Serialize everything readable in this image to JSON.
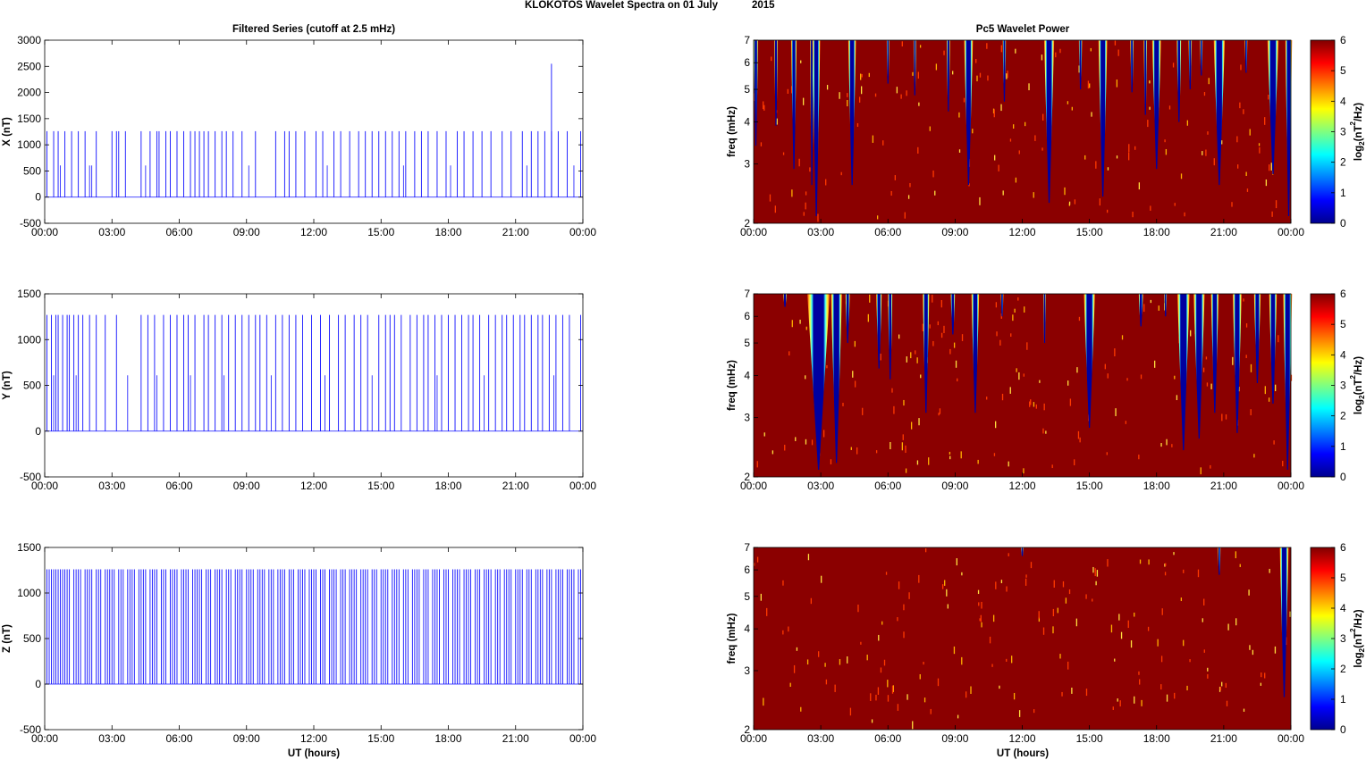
{
  "figure": {
    "title": "KLOKOTOS Wavelet Spectra on 01 July",
    "year": "2015"
  },
  "left_title": "Filtered Series (cutoff at 2.5 mHz)",
  "right_title": "Pc5 Wavelet Power",
  "x_label": "UT (hours)",
  "time_ticks": [
    "00:00",
    "03:00",
    "06:00",
    "09:00",
    "12:00",
    "15:00",
    "18:00",
    "21:00",
    "00:00"
  ],
  "freq_ticks": [
    "2",
    "3",
    "4",
    "5",
    "6",
    "7"
  ],
  "freq_label": "freq (mHz)",
  "colorbar_ticks": [
    "0",
    "1",
    "2",
    "3",
    "4",
    "5",
    "6"
  ],
  "colorbar_label_main": "log",
  "colorbar_label_sub": "2",
  "colorbar_label_rest": "(nT",
  "colorbar_label_sup": "2",
  "colorbar_label_end": "/Hz)",
  "colors": {
    "series_line": "#1010ff",
    "bg_power": "#8b0000",
    "low_power": "#000090"
  },
  "chart_data": [
    {
      "type": "line",
      "title": "Filtered Series (cutoff at 2.5 mHz)",
      "ylabel": "X (nT)",
      "xlabel": "",
      "x_ticks": [
        "00:00",
        "03:00",
        "06:00",
        "09:00",
        "12:00",
        "15:00",
        "18:00",
        "21:00",
        "00:00"
      ],
      "ylim": [
        -500,
        3000
      ],
      "y_ticks": [
        -500,
        0,
        500,
        1000,
        1500,
        2000,
        2500,
        3000
      ],
      "baseline": 0,
      "spike_level": 1260,
      "max_spike": {
        "hour": 22.6,
        "value": 2550
      },
      "spike_hours": [
        0.1,
        0.4,
        0.6,
        0.9,
        1.2,
        1.5,
        1.8,
        2.3,
        3.0,
        3.2,
        3.3,
        3.6,
        4.3,
        4.7,
        5.0,
        5.1,
        5.4,
        5.6,
        5.9,
        6.2,
        6.5,
        6.7,
        6.9,
        7.1,
        7.3,
        7.6,
        7.9,
        8.1,
        8.4,
        8.8,
        9.4,
        10.3,
        10.7,
        10.9,
        11.2,
        11.6,
        12.1,
        12.4,
        12.9,
        13.2,
        13.6,
        14.0,
        14.3,
        14.6,
        14.9,
        15.2,
        15.5,
        15.8,
        16.1,
        16.5,
        16.8,
        17.1,
        17.5,
        17.9,
        18.4,
        18.7,
        19.1,
        19.5,
        19.9,
        20.4,
        20.8,
        21.3,
        21.7,
        22.0,
        22.3,
        22.6,
        22.9,
        23.3,
        23.9
      ],
      "small_hours": [
        0.7,
        2.0,
        2.1,
        4.5,
        9.1,
        12.6,
        16.0,
        18.1,
        21.5,
        23.6
      ]
    },
    {
      "type": "line",
      "ylabel": "Y (nT)",
      "xlabel": "",
      "x_ticks": [
        "00:00",
        "03:00",
        "06:00",
        "09:00",
        "12:00",
        "15:00",
        "18:00",
        "21:00",
        "00:00"
      ],
      "ylim": [
        -500,
        1500
      ],
      "y_ticks": [
        -500,
        0,
        500,
        1000,
        1500
      ],
      "baseline": 0,
      "spike_level": 1270,
      "spike_hours": [
        0.1,
        0.3,
        0.5,
        0.6,
        0.8,
        1.0,
        1.1,
        1.3,
        1.5,
        1.7,
        2.0,
        2.3,
        2.7,
        3.2,
        4.3,
        4.6,
        4.9,
        5.3,
        5.6,
        5.9,
        6.2,
        6.4,
        6.7,
        7.1,
        7.3,
        7.6,
        7.9,
        8.2,
        8.5,
        8.8,
        9.1,
        9.4,
        9.6,
        9.9,
        10.3,
        10.6,
        10.9,
        11.2,
        11.5,
        11.9,
        12.3,
        12.7,
        13.1,
        13.4,
        13.8,
        14.1,
        14.4,
        14.9,
        15.2,
        15.4,
        15.6,
        15.9,
        16.3,
        16.6,
        16.9,
        17.1,
        17.4,
        17.7,
        18.0,
        18.3,
        18.6,
        18.9,
        19.1,
        19.4,
        19.8,
        20.1,
        20.4,
        20.6,
        20.9,
        21.2,
        21.4,
        21.7,
        22.0,
        22.2,
        22.5,
        22.8,
        23.1,
        23.4,
        23.9
      ],
      "small_hours": [
        0.4,
        1.4,
        3.7,
        5.0,
        6.5,
        8.0,
        10.1,
        12.5,
        14.6,
        17.5,
        19.6,
        22.7
      ]
    },
    {
      "type": "line",
      "ylabel": "Z (nT)",
      "xlabel": "UT (hours)",
      "x_ticks": [
        "00:00",
        "03:00",
        "06:00",
        "09:00",
        "12:00",
        "15:00",
        "18:00",
        "21:00",
        "00:00"
      ],
      "ylim": [
        -500,
        1500
      ],
      "y_ticks": [
        -500,
        0,
        500,
        1000,
        1500
      ],
      "baseline": 0,
      "spike_level": 1260,
      "spike_density": "continuous dense spikes from 00:00 to 23:59 at roughly every 0.12 h",
      "spike_hours": [
        0.1,
        0.2,
        0.3,
        0.4,
        0.5,
        0.6,
        0.7,
        0.8,
        0.9,
        1.0,
        1.1,
        1.3,
        1.4,
        1.5,
        1.6,
        1.8,
        1.9,
        2.0,
        2.1,
        2.3,
        2.4,
        2.5,
        2.7,
        2.8,
        2.9,
        3.0,
        3.1,
        3.3,
        3.4,
        3.5,
        3.7,
        3.8,
        3.9,
        4.0,
        4.2,
        4.3,
        4.4,
        4.5,
        4.7,
        4.8,
        4.9,
        5.0,
        5.2,
        5.3,
        5.4,
        5.6,
        5.7,
        5.8,
        5.9,
        6.1,
        6.2,
        6.3,
        6.4,
        6.6,
        6.7,
        6.8,
        6.9,
        7.0,
        7.2,
        7.3,
        7.4,
        7.6,
        7.7,
        7.8,
        7.9,
        8.1,
        8.2,
        8.3,
        8.5,
        8.6,
        8.7,
        8.8,
        9.0,
        9.1,
        9.2,
        9.3,
        9.5,
        9.6,
        9.7,
        9.8,
        10.0,
        10.1,
        10.2,
        10.4,
        10.5,
        10.6,
        10.7,
        10.9,
        11.0,
        11.1,
        11.3,
        11.4,
        11.5,
        11.6,
        11.8,
        11.9,
        12.0,
        12.1,
        12.3,
        12.4,
        12.5,
        12.7,
        12.8,
        12.9,
        13.0,
        13.2,
        13.3,
        13.4,
        13.6,
        13.7,
        13.8,
        13.9,
        14.1,
        14.2,
        14.3,
        14.4,
        14.6,
        14.7,
        14.8,
        15.0,
        15.1,
        15.2,
        15.3,
        15.5,
        15.6,
        15.7,
        15.8,
        16.0,
        16.1,
        16.2,
        16.4,
        16.5,
        16.6,
        16.7,
        16.9,
        17.0,
        17.1,
        17.3,
        17.4,
        17.5,
        17.6,
        17.8,
        17.9,
        18.0,
        18.2,
        18.3,
        18.4,
        18.5,
        18.7,
        18.8,
        18.9,
        19.0,
        19.2,
        19.3,
        19.4,
        19.6,
        19.7,
        19.8,
        19.9,
        20.1,
        20.2,
        20.3,
        20.5,
        20.6,
        20.7,
        20.8,
        21.0,
        21.1,
        21.2,
        21.3,
        21.5,
        21.6,
        21.7,
        21.9,
        22.0,
        22.1,
        22.2,
        22.4,
        22.5,
        22.6,
        22.8,
        22.9,
        23.0,
        23.1,
        23.3,
        23.4,
        23.5,
        23.6,
        23.8,
        23.9
      ]
    },
    {
      "type": "heatmap",
      "title": "Pc5 Wavelet Power",
      "ylabel": "freq (mHz)",
      "xlabel": "",
      "scale_y": "log",
      "ylim": [
        2,
        7
      ],
      "zlim": [
        0,
        6
      ],
      "colorbar": "log2(nT^2/Hz)",
      "background_value": 6,
      "low_power_plumes": [
        {
          "hour": 0.1,
          "depth_mhz": 3.4,
          "width_h": 0.2
        },
        {
          "hour": 1.0,
          "depth_mhz": 3.9,
          "width_h": 0.15
        },
        {
          "hour": 1.8,
          "depth_mhz": 2.9,
          "width_h": 0.25
        },
        {
          "hour": 2.6,
          "depth_mhz": 2.6,
          "width_h": 0.15
        },
        {
          "hour": 2.8,
          "depth_mhz": 2.1,
          "width_h": 0.35
        },
        {
          "hour": 4.4,
          "depth_mhz": 2.6,
          "width_h": 0.35
        },
        {
          "hour": 6.0,
          "depth_mhz": 5.2,
          "width_h": 0.12
        },
        {
          "hour": 7.2,
          "depth_mhz": 4.8,
          "width_h": 0.12
        },
        {
          "hour": 8.7,
          "depth_mhz": 4.3,
          "width_h": 0.15
        },
        {
          "hour": 9.6,
          "depth_mhz": 2.6,
          "width_h": 0.4
        },
        {
          "hour": 11.2,
          "depth_mhz": 4.6,
          "width_h": 0.15
        },
        {
          "hour": 13.2,
          "depth_mhz": 2.3,
          "width_h": 0.45
        },
        {
          "hour": 14.6,
          "depth_mhz": 5.0,
          "width_h": 0.15
        },
        {
          "hour": 15.6,
          "depth_mhz": 2.4,
          "width_h": 0.4
        },
        {
          "hour": 16.9,
          "depth_mhz": 4.9,
          "width_h": 0.15
        },
        {
          "hour": 17.5,
          "depth_mhz": 4.2,
          "width_h": 0.15
        },
        {
          "hour": 18.0,
          "depth_mhz": 2.9,
          "width_h": 0.4
        },
        {
          "hour": 19.0,
          "depth_mhz": 4.0,
          "width_h": 0.2
        },
        {
          "hour": 19.5,
          "depth_mhz": 5.0,
          "width_h": 0.15
        },
        {
          "hour": 20.0,
          "depth_mhz": 5.5,
          "width_h": 0.12
        },
        {
          "hour": 20.8,
          "depth_mhz": 2.6,
          "width_h": 0.5
        },
        {
          "hour": 22.0,
          "depth_mhz": 5.6,
          "width_h": 0.12
        },
        {
          "hour": 23.2,
          "depth_mhz": 2.8,
          "width_h": 0.5
        },
        {
          "hour": 23.9,
          "depth_mhz": 2.1,
          "width_h": 0.3
        }
      ]
    },
    {
      "type": "heatmap",
      "ylabel": "freq (mHz)",
      "xlabel": "",
      "scale_y": "log",
      "ylim": [
        2,
        7
      ],
      "zlim": [
        0,
        6
      ],
      "colorbar": "log2(nT^2/Hz)",
      "background_value": 6,
      "low_power_plumes": [
        {
          "hour": 1.4,
          "depth_mhz": 6.4,
          "width_h": 0.15
        },
        {
          "hour": 2.9,
          "depth_mhz": 2.1,
          "width_h": 1.0
        },
        {
          "hour": 3.7,
          "depth_mhz": 2.2,
          "width_h": 0.5
        },
        {
          "hour": 4.2,
          "depth_mhz": 5.0,
          "width_h": 0.2
        },
        {
          "hour": 5.6,
          "depth_mhz": 4.2,
          "width_h": 0.25
        },
        {
          "hour": 6.1,
          "depth_mhz": 3.9,
          "width_h": 0.2
        },
        {
          "hour": 7.7,
          "depth_mhz": 3.1,
          "width_h": 0.3
        },
        {
          "hour": 8.9,
          "depth_mhz": 5.3,
          "width_h": 0.2
        },
        {
          "hour": 9.9,
          "depth_mhz": 3.1,
          "width_h": 0.35
        },
        {
          "hour": 11.1,
          "depth_mhz": 6.0,
          "width_h": 0.12
        },
        {
          "hour": 13.0,
          "depth_mhz": 5.0,
          "width_h": 0.12
        },
        {
          "hour": 15.0,
          "depth_mhz": 2.8,
          "width_h": 0.5
        },
        {
          "hour": 17.3,
          "depth_mhz": 5.6,
          "width_h": 0.2
        },
        {
          "hour": 18.4,
          "depth_mhz": 6.0,
          "width_h": 0.12
        },
        {
          "hour": 19.2,
          "depth_mhz": 2.4,
          "width_h": 0.55
        },
        {
          "hour": 19.9,
          "depth_mhz": 2.6,
          "width_h": 0.5
        },
        {
          "hour": 20.6,
          "depth_mhz": 3.1,
          "width_h": 0.35
        },
        {
          "hour": 21.6,
          "depth_mhz": 2.7,
          "width_h": 0.4
        },
        {
          "hour": 22.5,
          "depth_mhz": 3.8,
          "width_h": 0.3
        },
        {
          "hour": 23.2,
          "depth_mhz": 3.3,
          "width_h": 0.35
        },
        {
          "hour": 23.85,
          "depth_mhz": 2.1,
          "width_h": 0.4
        }
      ]
    },
    {
      "type": "heatmap",
      "ylabel": "freq (mHz)",
      "xlabel": "UT (hours)",
      "scale_y": "log",
      "ylim": [
        2,
        7
      ],
      "zlim": [
        0,
        6
      ],
      "colorbar": "log2(nT^2/Hz)",
      "background_value": 6,
      "low_power_plumes": [
        {
          "hour": 12.0,
          "depth_mhz": 6.6,
          "width_h": 0.08
        },
        {
          "hour": 20.8,
          "depth_mhz": 5.8,
          "width_h": 0.12
        },
        {
          "hour": 23.7,
          "depth_mhz": 2.5,
          "width_h": 0.4
        }
      ]
    }
  ]
}
